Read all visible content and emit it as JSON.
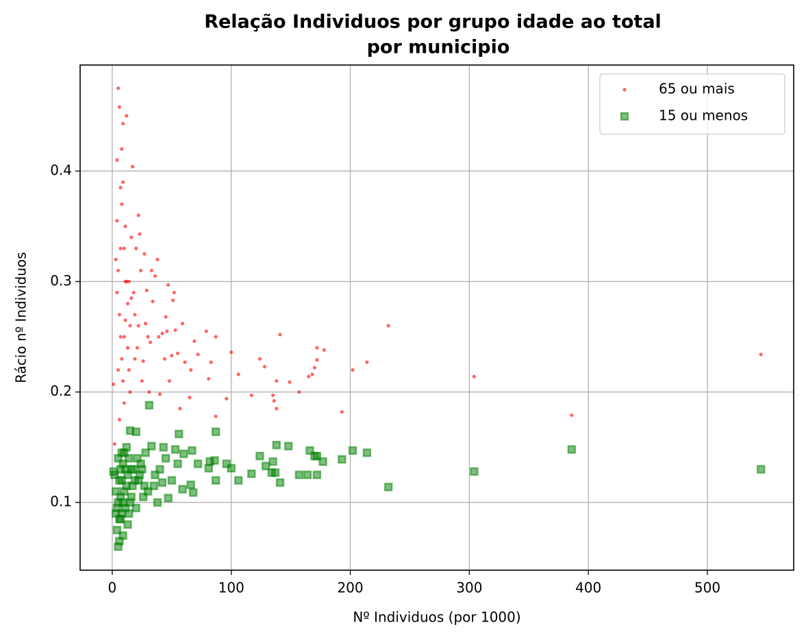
{
  "chart_data": {
    "type": "scatter",
    "title": [
      "Relação Individuos por grupo idade ao total",
      "por municipio"
    ],
    "xlabel": "Nº Individuos (por 1000)",
    "ylabel": "Rácio nº Individuos",
    "xlim": [
      -27,
      572.5
    ],
    "xticks": [
      0,
      100,
      200,
      300,
      400,
      500
    ],
    "ylim": [
      0.0387,
      0.496
    ],
    "yticks": [
      0.1,
      0.2,
      0.3,
      0.4
    ],
    "grid": true,
    "legend": "upper right",
    "series": [
      {
        "name": "65 ou mais",
        "color": "#ff0000",
        "marker": "circle",
        "x": [
          545,
          386,
          304,
          232,
          214,
          202,
          193,
          178,
          172,
          172,
          170,
          168,
          165,
          157,
          149,
          141,
          138,
          138,
          136,
          135,
          128,
          124,
          117,
          106,
          100,
          96,
          87,
          87,
          83,
          81,
          79,
          72,
          69,
          66,
          65,
          61,
          59,
          57,
          55,
          53,
          52,
          51,
          50,
          48,
          47,
          46,
          45,
          44,
          42,
          40,
          39,
          38,
          36,
          34,
          33,
          32,
          31,
          29,
          28,
          27,
          26,
          24,
          23,
          22,
          21,
          20,
          19,
          18,
          17,
          16,
          15,
          14,
          13,
          12,
          11,
          10,
          9,
          8,
          7,
          6,
          5,
          4,
          3,
          2,
          1,
          4,
          5,
          6,
          7,
          8,
          9,
          10,
          11,
          12,
          13,
          14,
          15,
          16,
          5,
          6,
          7,
          8,
          9,
          4,
          10,
          11,
          19,
          22,
          25,
          30
        ],
        "values": [
          0.234,
          0.179,
          0.214,
          0.26,
          0.227,
          0.22,
          0.182,
          0.238,
          0.24,
          0.229,
          0.222,
          0.216,
          0.214,
          0.2,
          0.209,
          0.252,
          0.21,
          0.185,
          0.192,
          0.197,
          0.223,
          0.23,
          0.197,
          0.216,
          0.236,
          0.194,
          0.25,
          0.178,
          0.227,
          0.212,
          0.255,
          0.234,
          0.246,
          0.22,
          0.195,
          0.227,
          0.262,
          0.185,
          0.235,
          0.256,
          0.29,
          0.283,
          0.233,
          0.21,
          0.297,
          0.255,
          0.268,
          0.23,
          0.253,
          0.198,
          0.25,
          0.32,
          0.305,
          0.282,
          0.31,
          0.245,
          0.2,
          0.292,
          0.262,
          0.325,
          0.228,
          0.31,
          0.343,
          0.36,
          0.24,
          0.33,
          0.27,
          0.29,
          0.404,
          0.34,
          0.26,
          0.3,
          0.28,
          0.45,
          0.35,
          0.33,
          0.443,
          0.42,
          0.385,
          0.458,
          0.475,
          0.29,
          0.32,
          0.153,
          0.207,
          0.355,
          0.31,
          0.27,
          0.25,
          0.23,
          0.21,
          0.19,
          0.265,
          0.3,
          0.24,
          0.22,
          0.2,
          0.285,
          0.22,
          0.175,
          0.33,
          0.37,
          0.39,
          0.41,
          0.25,
          0.3,
          0.23,
          0.26,
          0.21,
          0.25
        ]
      },
      {
        "name": "15 ou menos",
        "color": "#008000",
        "marker": "square",
        "x": [
          545,
          386,
          304,
          232,
          214,
          202,
          193,
          177,
          172,
          172,
          170,
          166,
          164,
          157,
          148,
          141,
          138,
          137,
          135,
          134,
          129,
          124,
          117,
          106,
          100,
          96,
          87,
          87,
          86,
          82,
          81,
          72,
          68,
          67,
          66,
          60,
          59,
          56,
          55,
          53,
          50,
          47,
          45,
          43,
          40,
          38,
          36,
          33,
          31,
          30,
          28,
          25,
          22,
          20,
          18,
          16,
          15,
          14,
          13,
          12,
          11,
          10,
          9,
          8,
          7,
          6,
          5,
          4,
          3,
          2,
          1,
          4,
          5,
          6,
          7,
          8,
          9,
          10,
          11,
          12,
          13,
          14,
          15,
          16,
          17,
          19,
          21,
          23,
          24,
          26,
          5,
          6,
          7,
          8,
          9,
          3,
          35,
          42,
          27,
          20
        ],
        "values": [
          0.13,
          0.148,
          0.128,
          0.114,
          0.145,
          0.147,
          0.139,
          0.137,
          0.125,
          0.142,
          0.142,
          0.147,
          0.125,
          0.125,
          0.151,
          0.118,
          0.152,
          0.127,
          0.137,
          0.127,
          0.133,
          0.142,
          0.126,
          0.12,
          0.131,
          0.135,
          0.164,
          0.12,
          0.138,
          0.137,
          0.131,
          0.135,
          0.109,
          0.147,
          0.116,
          0.144,
          0.112,
          0.162,
          0.135,
          0.148,
          0.12,
          0.104,
          0.14,
          0.15,
          0.13,
          0.1,
          0.125,
          0.151,
          0.188,
          0.11,
          0.145,
          0.13,
          0.12,
          0.164,
          0.13,
          0.105,
          0.165,
          0.09,
          0.08,
          0.15,
          0.13,
          0.11,
          0.1,
          0.12,
          0.085,
          0.065,
          0.06,
          0.095,
          0.11,
          0.125,
          0.128,
          0.075,
          0.14,
          0.12,
          0.105,
          0.09,
          0.135,
          0.145,
          0.095,
          0.115,
          0.125,
          0.14,
          0.1,
          0.13,
          0.115,
          0.12,
          0.14,
          0.125,
          0.135,
          0.105,
          0.1,
          0.085,
          0.13,
          0.145,
          0.07,
          0.09,
          0.115,
          0.118,
          0.115,
          0.095
        ]
      }
    ]
  }
}
